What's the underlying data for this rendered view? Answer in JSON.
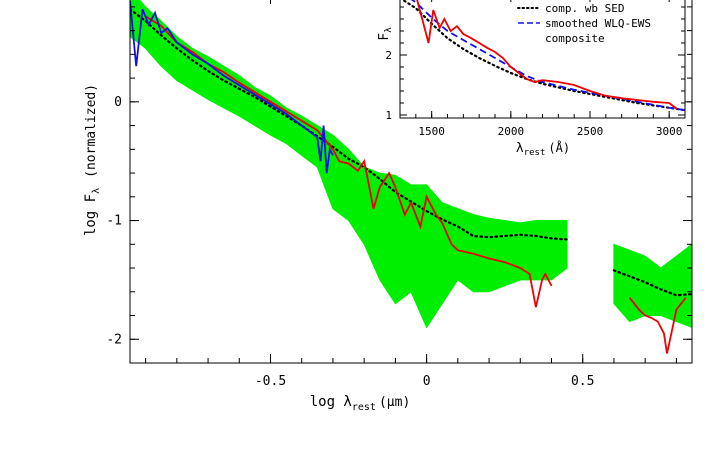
{
  "chart_data": [
    {
      "type": "line",
      "panel": "main",
      "xlabel": "log λ",
      "xlabel_sub": "rest",
      "xlabel_unit": "(μm)",
      "ylabel": "log F",
      "ylabel_sub": "λ",
      "ylabel_note": "(normalized)",
      "xlim": [
        -0.95,
        0.85
      ],
      "ylim": [
        -2.2,
        0.9
      ],
      "xticks": [
        -0.5,
        0,
        0.5
      ],
      "xtick_labels": [
        "-0.5",
        "0",
        "0.5"
      ],
      "yticks": [
        0,
        -1,
        -2
      ],
      "ytick_labels": [
        "0",
        "-1",
        "-2"
      ],
      "series": [
        {
          "color": "#00ee00",
          "style": "band",
          "segments": [
            {
              "x": [
                -0.95,
                -0.9,
                -0.85,
                -0.8,
                -0.75,
                -0.7,
                -0.65,
                -0.6,
                -0.55,
                -0.5,
                -0.45,
                -0.4,
                -0.35,
                -0.3,
                -0.25,
                -0.2,
                -0.15,
                -0.1,
                -0.05,
                0.0,
                0.05,
                0.1,
                0.15,
                0.2,
                0.25,
                0.3,
                0.35,
                0.4,
                0.45
              ],
              "low": [
                0.55,
                0.45,
                0.3,
                0.18,
                0.1,
                0.02,
                -0.05,
                -0.12,
                -0.2,
                -0.28,
                -0.35,
                -0.45,
                -0.55,
                -0.9,
                -1.0,
                -1.2,
                -1.5,
                -1.7,
                -1.6,
                -1.9,
                -1.7,
                -1.5,
                -1.6,
                -1.6,
                -1.55,
                -1.5,
                -1.5,
                -1.5,
                -1.4
              ],
              "high": [
                0.95,
                0.8,
                0.68,
                0.55,
                0.45,
                0.38,
                0.3,
                0.22,
                0.12,
                0.05,
                -0.05,
                -0.12,
                -0.2,
                -0.28,
                -0.4,
                -0.55,
                -0.6,
                -0.62,
                -0.7,
                -0.7,
                -0.85,
                -0.9,
                -0.95,
                -0.98,
                -1.0,
                -1.02,
                -1.0,
                -1.0,
                -1.0
              ]
            },
            {
              "x": [
                0.6,
                0.65,
                0.7,
                0.75,
                0.8,
                0.85
              ],
              "low": [
                -1.7,
                -1.85,
                -1.8,
                -1.8,
                -1.85,
                -1.9
              ],
              "high": [
                -1.2,
                -1.25,
                -1.3,
                -1.4,
                -1.3,
                -1.2
              ]
            }
          ]
        },
        {
          "color": "#000000",
          "style": "dotted",
          "segments": [
            {
              "x": [
                -0.95,
                -0.9,
                -0.85,
                -0.8,
                -0.75,
                -0.7,
                -0.65,
                -0.6,
                -0.55,
                -0.5,
                -0.45,
                -0.4,
                -0.35,
                -0.3,
                -0.25,
                -0.2,
                -0.15,
                -0.1,
                -0.05,
                0.0,
                0.05,
                0.1,
                0.15,
                0.2,
                0.25,
                0.3,
                0.35,
                0.4,
                0.45
              ],
              "y": [
                0.78,
                0.68,
                0.56,
                0.45,
                0.35,
                0.26,
                0.18,
                0.11,
                0.04,
                -0.04,
                -0.12,
                -0.2,
                -0.29,
                -0.38,
                -0.48,
                -0.55,
                -0.65,
                -0.76,
                -0.84,
                -0.92,
                -0.99,
                -1.05,
                -1.13,
                -1.14,
                -1.13,
                -1.12,
                -1.13,
                -1.15,
                -1.16
              ]
            },
            {
              "x": [
                0.6,
                0.65,
                0.7,
                0.75,
                0.8,
                0.85
              ],
              "y": [
                -1.42,
                -1.47,
                -1.52,
                -1.58,
                -1.63,
                -1.62
              ]
            }
          ]
        },
        {
          "color": "#ee0000",
          "style": "solid",
          "segments": [
            {
              "x": [
                -0.9,
                -0.85,
                -0.8,
                -0.75,
                -0.7,
                -0.65,
                -0.6,
                -0.55,
                -0.5,
                -0.45,
                -0.4,
                -0.35,
                -0.3,
                -0.28,
                -0.25,
                -0.22,
                -0.2,
                -0.17,
                -0.15,
                -0.12,
                -0.1,
                -0.07,
                -0.05,
                -0.02,
                0.0,
                0.03,
                0.05,
                0.08,
                0.1,
                0.15,
                0.2,
                0.25,
                0.3,
                0.33,
                0.35,
                0.37,
                0.38,
                0.4
              ],
              "y": [
                0.72,
                0.64,
                0.5,
                0.42,
                0.32,
                0.25,
                0.16,
                0.08,
                0.0,
                -0.08,
                -0.16,
                -0.24,
                -0.4,
                -0.5,
                -0.52,
                -0.58,
                -0.5,
                -0.9,
                -0.72,
                -0.6,
                -0.72,
                -0.95,
                -0.85,
                -1.05,
                -0.8,
                -0.95,
                -1.02,
                -1.2,
                -1.25,
                -1.28,
                -1.32,
                -1.35,
                -1.4,
                -1.45,
                -1.73,
                -1.5,
                -1.45,
                -1.55
              ]
            },
            {
              "x": [
                0.65,
                0.68,
                0.7,
                0.72,
                0.74,
                0.76,
                0.77,
                0.78,
                0.8,
                0.83
              ],
              "y": [
                -1.65,
                -1.75,
                -1.8,
                -1.82,
                -1.85,
                -1.95,
                -2.12,
                -2.0,
                -1.75,
                -1.65
              ]
            }
          ]
        },
        {
          "color": "#1010ee",
          "style": "solid",
          "segments": [
            {
              "x": [
                -0.95,
                -0.93,
                -0.91,
                -0.89,
                -0.87,
                -0.85,
                -0.83,
                -0.8,
                -0.75,
                -0.7,
                -0.65,
                -0.6,
                -0.55,
                -0.5,
                -0.45,
                -0.4,
                -0.37,
                -0.35,
                -0.34,
                -0.33,
                -0.32,
                -0.31,
                -0.3
              ],
              "y": [
                0.85,
                0.3,
                0.78,
                0.65,
                0.75,
                0.58,
                0.62,
                0.5,
                0.4,
                0.32,
                0.22,
                0.14,
                0.06,
                -0.02,
                -0.1,
                -0.2,
                -0.26,
                -0.3,
                -0.5,
                -0.2,
                -0.6,
                -0.4,
                -0.45
              ]
            }
          ]
        }
      ]
    },
    {
      "type": "line",
      "panel": "inset",
      "xlabel": "λ",
      "xlabel_sub": "rest",
      "xlabel_unit": "(Å)",
      "ylabel": "F",
      "ylabel_sub": "λ",
      "xlim": [
        1300,
        3100
      ],
      "ylim": [
        0.95,
        3.0
      ],
      "xticks": [
        1500,
        2000,
        2500,
        3000
      ],
      "xtick_labels": [
        "1500",
        "2000",
        "2500",
        "3000"
      ],
      "yticks": [
        1,
        2
      ],
      "ytick_labels": [
        "1",
        "2"
      ],
      "legend": [
        {
          "label": "comp. wb SED",
          "color": "#000000",
          "style": "dotted"
        },
        {
          "label": "smoothed WLQ-EWS",
          "color": "#1010ee",
          "style": "dashed"
        },
        {
          "label": "composite",
          "color": "#ee0000",
          "style": "solid"
        }
      ],
      "series": [
        {
          "color": "#000000",
          "style": "dotted",
          "x": [
            1300,
            1400,
            1500,
            1600,
            1700,
            1800,
            1900,
            2000,
            2100,
            2200,
            2400,
            2600,
            2800,
            3000,
            3100
          ],
          "y": [
            2.95,
            2.78,
            2.52,
            2.28,
            2.1,
            1.95,
            1.82,
            1.7,
            1.6,
            1.52,
            1.4,
            1.3,
            1.2,
            1.12,
            1.08
          ]
        },
        {
          "color": "#1010ee",
          "style": "dashed",
          "x": [
            1300,
            1400,
            1500,
            1600,
            1700,
            1800,
            1900,
            2000,
            2100,
            2200,
            2400,
            2600,
            2800,
            3000,
            3100
          ],
          "y": [
            3.05,
            2.88,
            2.62,
            2.4,
            2.25,
            2.1,
            1.95,
            1.8,
            1.65,
            1.55,
            1.42,
            1.32,
            1.22,
            1.12,
            1.08
          ]
        },
        {
          "color": "#ee0000",
          "style": "solid",
          "x": [
            1400,
            1450,
            1480,
            1510,
            1550,
            1580,
            1620,
            1660,
            1700,
            1750,
            1800,
            1850,
            1900,
            1950,
            2000,
            2050,
            2100,
            2150,
            2200,
            2300,
            2400,
            2500,
            2600,
            2700,
            2800,
            2900,
            3000,
            3050
          ],
          "y": [
            3.0,
            2.5,
            2.2,
            2.75,
            2.45,
            2.6,
            2.4,
            2.48,
            2.35,
            2.28,
            2.2,
            2.12,
            2.05,
            1.95,
            1.8,
            1.7,
            1.6,
            1.55,
            1.58,
            1.55,
            1.5,
            1.4,
            1.32,
            1.28,
            1.25,
            1.22,
            1.2,
            1.1
          ]
        }
      ]
    }
  ]
}
